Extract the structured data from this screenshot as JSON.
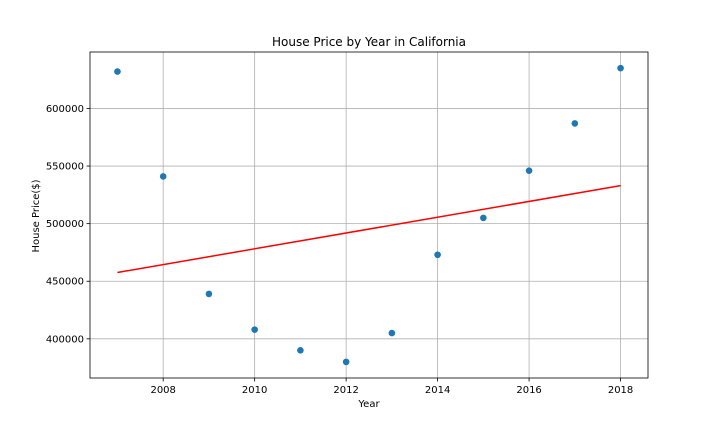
{
  "chart_data": {
    "type": "scatter",
    "title": "House Price by Year in California",
    "xlabel": "Year",
    "ylabel": "House Price($)",
    "xlim": [
      2006.4,
      2018.6
    ],
    "ylim": [
      366000,
      649000
    ],
    "xticks": [
      2008,
      2010,
      2012,
      2014,
      2016,
      2018
    ],
    "yticks": [
      400000,
      450000,
      500000,
      550000,
      600000
    ],
    "grid": true,
    "legend": "none",
    "series": [
      {
        "type": "scatter",
        "color": "#1f77b4",
        "x": [
          2007,
          2008,
          2009,
          2010,
          2011,
          2012,
          2013,
          2014,
          2015,
          2016,
          2017,
          2018
        ],
        "y": [
          632000,
          541000,
          439000,
          408000,
          390000,
          380000,
          405000,
          473000,
          505000,
          546000,
          587000,
          635000
        ]
      },
      {
        "type": "line",
        "color": "#ff0000",
        "x": [
          2007,
          2018
        ],
        "y": [
          457600,
          533000
        ]
      }
    ]
  }
}
